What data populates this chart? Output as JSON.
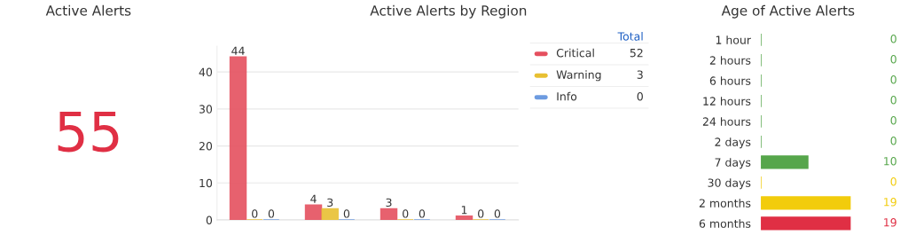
{
  "chart_data": [
    {
      "type": "other",
      "title": "Active Alerts",
      "annotations": [
        "55"
      ]
    },
    {
      "type": "bar",
      "title": "Active Alerts by Region",
      "categories": [
        null,
        null,
        null,
        null
      ],
      "series": [
        {
          "name": "Critical",
          "color": "#e5505f",
          "values": [
            44,
            4,
            3,
            1
          ]
        },
        {
          "name": "Warning",
          "color": "#e8c032",
          "values": [
            0,
            3,
            0,
            0
          ]
        },
        {
          "name": "Info",
          "color": "#6d9be0",
          "values": [
            0,
            0,
            0,
            0
          ]
        }
      ],
      "ylim": [
        0,
        47
      ],
      "yticks": [
        0,
        10,
        20,
        30,
        40
      ],
      "grid": "y",
      "data_labels": true,
      "legend": "right",
      "legend_title": "Total",
      "annotations": [
        "52",
        "3",
        "0"
      ]
    },
    {
      "type": "bar",
      "orientation": "horizontal",
      "title": "Age of Active Alerts",
      "categories": [
        "1 hour",
        "2 hours",
        "6 hours",
        "12 hours",
        "24 hours",
        "2 days",
        "7 days",
        "30 days",
        "2 months",
        "6 months"
      ],
      "values": [
        0,
        0,
        0,
        0,
        0,
        0,
        10,
        0,
        19,
        19
      ],
      "colors": [
        "#56a64b",
        "#56a64b",
        "#56a64b",
        "#56a64b",
        "#56a64b",
        "#56a64b",
        "#56a64b",
        "#f2cc0c",
        "#f2cc0c",
        "#e02f44"
      ],
      "tick_labels": "y",
      "data_labels": true
    }
  ]
}
